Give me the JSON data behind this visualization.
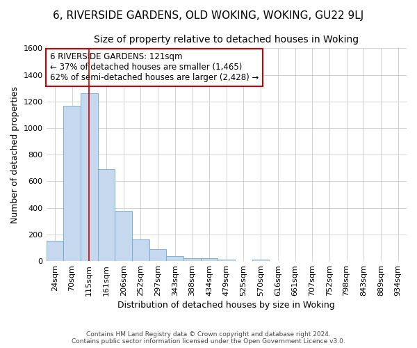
{
  "title": "6, RIVERSIDE GARDENS, OLD WOKING, WOKING, GU22 9LJ",
  "subtitle": "Size of property relative to detached houses in Woking",
  "xlabel": "Distribution of detached houses by size in Woking",
  "ylabel": "Number of detached properties",
  "categories": [
    "24sqm",
    "70sqm",
    "115sqm",
    "161sqm",
    "206sqm",
    "252sqm",
    "297sqm",
    "343sqm",
    "388sqm",
    "434sqm",
    "479sqm",
    "525sqm",
    "570sqm",
    "616sqm",
    "661sqm",
    "707sqm",
    "752sqm",
    "798sqm",
    "843sqm",
    "889sqm",
    "934sqm"
  ],
  "values": [
    150,
    1165,
    1260,
    690,
    375,
    160,
    90,
    35,
    20,
    20,
    10,
    0,
    10,
    0,
    0,
    0,
    0,
    0,
    0,
    0,
    0
  ],
  "bar_color": "#c5d8ee",
  "bar_edge_color": "#6fa8d4",
  "vline_x": 2,
  "vline_color": "#cc0000",
  "annotation_text": "6 RIVERSIDE GARDENS: 121sqm\n← 37% of detached houses are smaller (1,465)\n62% of semi-detached houses are larger (2,428) →",
  "annotation_box_color": "#ffffff",
  "annotation_box_edge": "#cc0000",
  "ylim": [
    0,
    1600
  ],
  "yticks": [
    0,
    200,
    400,
    600,
    800,
    1000,
    1200,
    1400,
    1600
  ],
  "footer1": "Contains HM Land Registry data © Crown copyright and database right 2024.",
  "footer2": "Contains public sector information licensed under the Open Government Licence v3.0.",
  "bg_color": "#ffffff",
  "plot_bg_color": "#ffffff",
  "title_fontsize": 11,
  "subtitle_fontsize": 10,
  "label_fontsize": 9,
  "tick_fontsize": 8,
  "annotation_fontsize": 8.5
}
